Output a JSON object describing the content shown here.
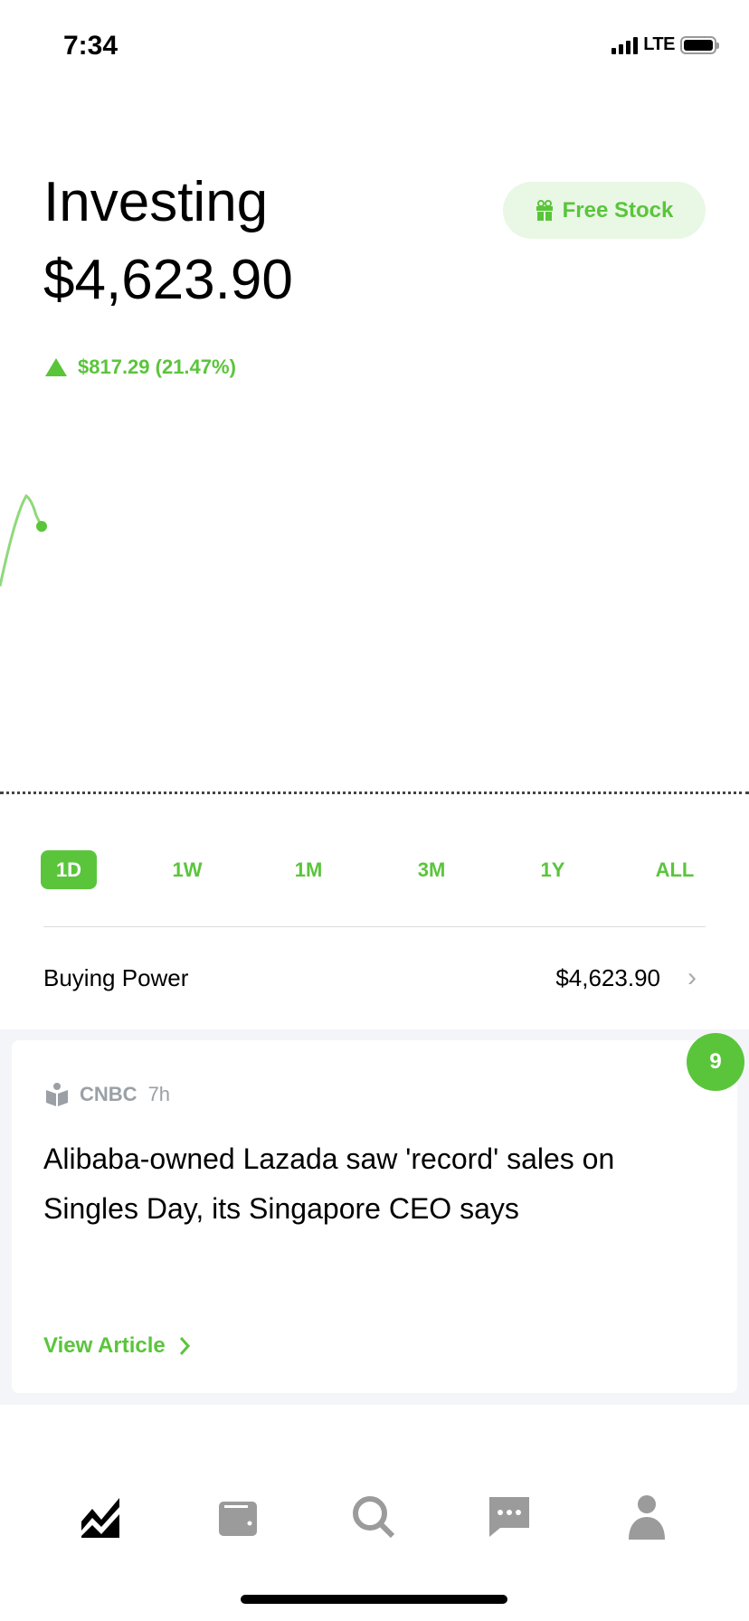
{
  "status_bar": {
    "time": "7:34",
    "network": "LTE",
    "battery_level": 1.0
  },
  "header": {
    "title": "Investing",
    "portfolio_value": "$4,623.90",
    "free_stock_label": "Free Stock",
    "change_text": "$817.29 (21.47%)",
    "change_direction": "up"
  },
  "colors": {
    "accent": "#5ac53b",
    "accent_light": "#e9f7e5",
    "muted": "#9aa0a6"
  },
  "chart_data": {
    "type": "line",
    "series": [
      {
        "values": [
          0,
          0.86,
          0.57
        ]
      }
    ],
    "grid": false
  },
  "range_tabs": [
    {
      "label": "1D",
      "active": true
    },
    {
      "label": "1W",
      "active": false
    },
    {
      "label": "1M",
      "active": false
    },
    {
      "label": "3M",
      "active": false
    },
    {
      "label": "1Y",
      "active": false
    },
    {
      "label": "ALL",
      "active": false
    }
  ],
  "buying_power": {
    "label": "Buying Power",
    "value": "$4,623.90"
  },
  "news": {
    "badge_count": "9",
    "source": "CNBC",
    "age": "7h",
    "headline": "Alibaba-owned Lazada saw 'record' sales on Singles Day, its Singapore CEO says",
    "cta": "View Article"
  },
  "tab_bar": [
    {
      "icon": "chart-icon",
      "active": true
    },
    {
      "icon": "wallet-icon",
      "active": false
    },
    {
      "icon": "search-icon",
      "active": false
    },
    {
      "icon": "messages-icon",
      "active": false
    },
    {
      "icon": "profile-icon",
      "active": false
    }
  ]
}
